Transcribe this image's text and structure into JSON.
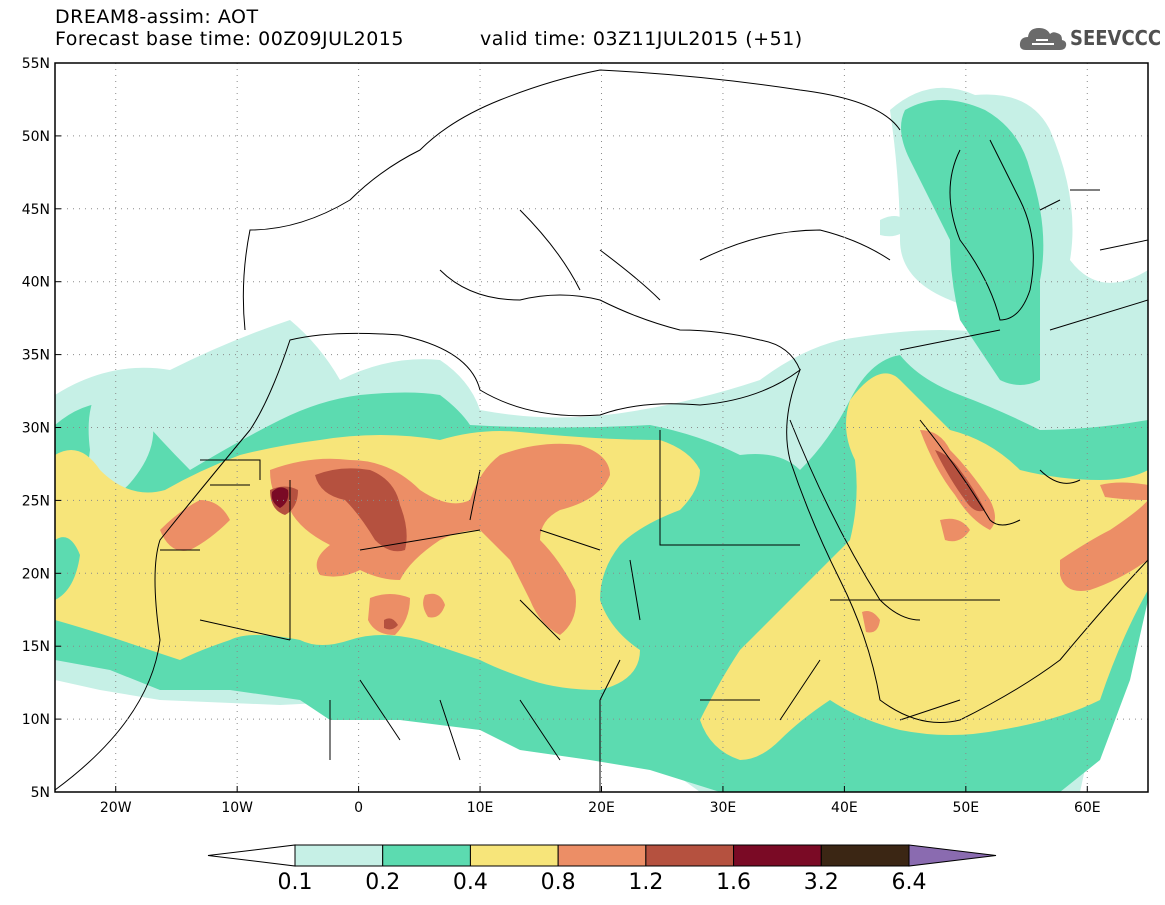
{
  "header": {
    "title_line1": "DREAM8-assim: AOT",
    "title_line2": "Forecast base time: 00Z09JUL2015",
    "valid_time": "valid time: 03Z11JUL2015 (+51)",
    "logo_text": "SEEVCCC",
    "logo_icon": "cloud-icon"
  },
  "map": {
    "lon_range": [
      -25,
      65
    ],
    "lat_range": [
      5,
      55
    ],
    "lat_ticks": [
      {
        "value": 55,
        "label": "55N"
      },
      {
        "value": 50,
        "label": "50N"
      },
      {
        "value": 45,
        "label": "45N"
      },
      {
        "value": 40,
        "label": "40N"
      },
      {
        "value": 35,
        "label": "35N"
      },
      {
        "value": 30,
        "label": "30N"
      },
      {
        "value": 25,
        "label": "25N"
      },
      {
        "value": 20,
        "label": "20N"
      },
      {
        "value": 15,
        "label": "15N"
      },
      {
        "value": 10,
        "label": "10N"
      },
      {
        "value": 5,
        "label": "5N"
      }
    ],
    "lon_ticks": [
      {
        "value": -20,
        "label": "20W"
      },
      {
        "value": -10,
        "label": "10W"
      },
      {
        "value": 0,
        "label": "0"
      },
      {
        "value": 10,
        "label": "10E"
      },
      {
        "value": 20,
        "label": "20E"
      },
      {
        "value": 30,
        "label": "30E"
      },
      {
        "value": 40,
        "label": "40E"
      },
      {
        "value": 50,
        "label": "50E"
      },
      {
        "value": 60,
        "label": "60E"
      }
    ],
    "grid": "dotted"
  },
  "colorbar": {
    "labels": [
      "0.1",
      "0.2",
      "0.4",
      "0.8",
      "1.2",
      "1.6",
      "3.2",
      "6.4"
    ],
    "colors": [
      "#ffffff",
      "#c6f0e6",
      "#5cdbb0",
      "#f7e57a",
      "#ec8e66",
      "#b5513f",
      "#7a0a25",
      "#3b2614",
      "#8a6bb0"
    ]
  },
  "levels": {
    "c1": "#c6f0e6",
    "c2": "#5cdbb0",
    "c3": "#f7e57a",
    "c4": "#ec8e66",
    "c5": "#b5513f",
    "c6": "#7a0a25"
  }
}
